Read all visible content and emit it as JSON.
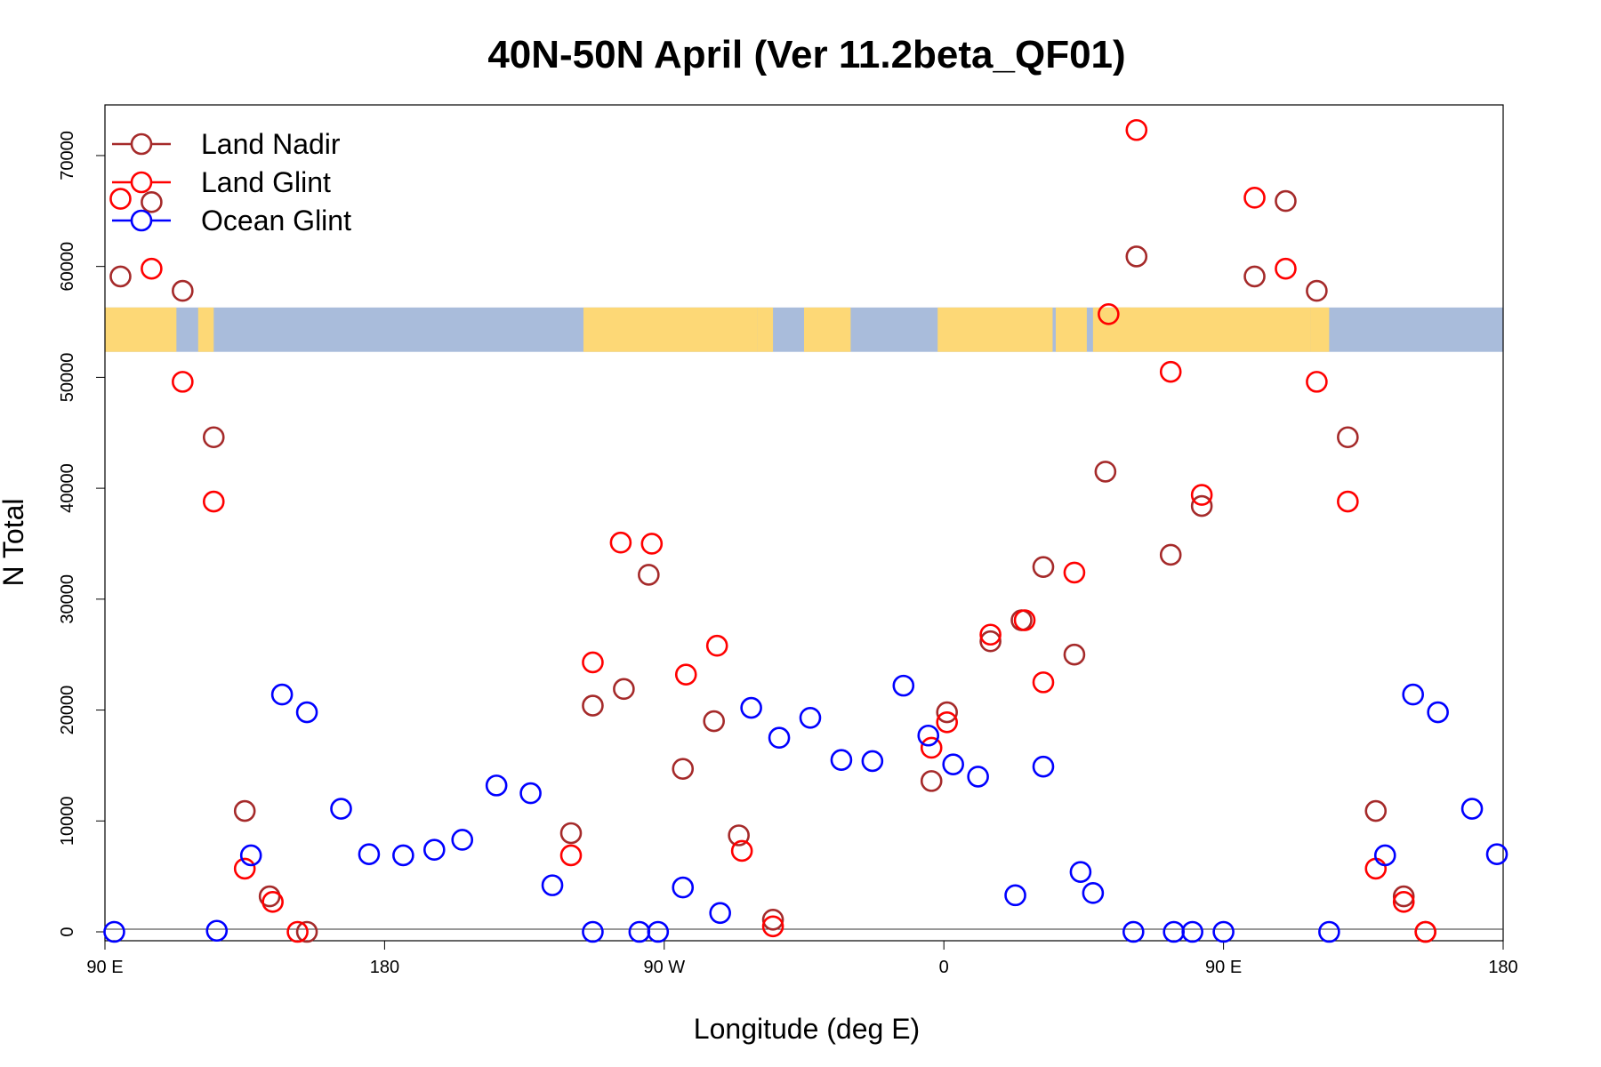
{
  "chart_data": {
    "type": "scatter",
    "title": "40N-50N April (Ver 11.2beta_QF01)",
    "xlabel": "Longitude (deg E)",
    "ylabel": "N Total",
    "xlim": [
      90,
      540
    ],
    "ylim": [
      0,
      72000
    ],
    "x_ticks": [
      {
        "value": 90,
        "label": "90 E"
      },
      {
        "value": 180,
        "label": "180"
      },
      {
        "value": 270,
        "label": "90 W"
      },
      {
        "value": 360,
        "label": "0"
      },
      {
        "value": 450,
        "label": "90 E"
      },
      {
        "value": 540,
        "label": "180"
      }
    ],
    "y_ticks": [
      {
        "value": 0,
        "label": "0"
      },
      {
        "value": 10000,
        "label": "10000"
      },
      {
        "value": 20000,
        "label": "20000"
      },
      {
        "value": 30000,
        "label": "30000"
      },
      {
        "value": 40000,
        "label": "40000"
      },
      {
        "value": 50000,
        "label": "50000"
      },
      {
        "value": 60000,
        "label": "60000"
      },
      {
        "value": 70000,
        "label": "70000"
      }
    ],
    "grid": false,
    "legend": {
      "position": "top-left"
    },
    "map_strip": {
      "lat_range": "40N-50N",
      "y_range": [
        52300,
        56300
      ],
      "land_color": "#FDD876",
      "ocean_color": "#A9BCDB"
    },
    "series": [
      {
        "name": "Land Nadir",
        "color": "#A52A2A",
        "points": [
          {
            "x": 95,
            "y": 59100
          },
          {
            "x": 105,
            "y": 65800
          },
          {
            "x": 115,
            "y": 57800
          },
          {
            "x": 125,
            "y": 44600
          },
          {
            "x": 135,
            "y": 10900
          },
          {
            "x": 143,
            "y": 3200
          },
          {
            "x": 155,
            "y": 0
          },
          {
            "x": 240,
            "y": 8900
          },
          {
            "x": 247,
            "y": 20400
          },
          {
            "x": 257,
            "y": 21900
          },
          {
            "x": 265,
            "y": 32200
          },
          {
            "x": 276,
            "y": 14700
          },
          {
            "x": 286,
            "y": 19000
          },
          {
            "x": 294,
            "y": 8700
          },
          {
            "x": 305,
            "y": 1100
          },
          {
            "x": 356,
            "y": 13600
          },
          {
            "x": 361,
            "y": 19800
          },
          {
            "x": 375,
            "y": 26200
          },
          {
            "x": 385,
            "y": 28100
          },
          {
            "x": 392,
            "y": 32900
          },
          {
            "x": 402,
            "y": 25000
          },
          {
            "x": 412,
            "y": 41500
          },
          {
            "x": 422,
            "y": 60900
          },
          {
            "x": 433,
            "y": 34000
          },
          {
            "x": 443,
            "y": 38400
          },
          {
            "x": 460,
            "y": 59100
          },
          {
            "x": 470,
            "y": 65900
          },
          {
            "x": 480,
            "y": 57800
          },
          {
            "x": 490,
            "y": 44600
          },
          {
            "x": 499,
            "y": 10900
          },
          {
            "x": 508,
            "y": 3200
          },
          {
            "x": 515,
            "y": 0
          }
        ]
      },
      {
        "name": "Land Glint",
        "color": "#FF0000",
        "points": [
          {
            "x": 95,
            "y": 66100
          },
          {
            "x": 105,
            "y": 59800
          },
          {
            "x": 115,
            "y": 49600
          },
          {
            "x": 125,
            "y": 38800
          },
          {
            "x": 135,
            "y": 5700
          },
          {
            "x": 144,
            "y": 2700
          },
          {
            "x": 152,
            "y": 0
          },
          {
            "x": 240,
            "y": 6900
          },
          {
            "x": 247,
            "y": 24300
          },
          {
            "x": 256,
            "y": 35100
          },
          {
            "x": 266,
            "y": 35000
          },
          {
            "x": 277,
            "y": 23200
          },
          {
            "x": 287,
            "y": 25800
          },
          {
            "x": 295,
            "y": 7300
          },
          {
            "x": 305,
            "y": 500
          },
          {
            "x": 356,
            "y": 16600
          },
          {
            "x": 361,
            "y": 18900
          },
          {
            "x": 375,
            "y": 26800
          },
          {
            "x": 386,
            "y": 28100
          },
          {
            "x": 392,
            "y": 22500
          },
          {
            "x": 402,
            "y": 32400
          },
          {
            "x": 413,
            "y": 55700
          },
          {
            "x": 422,
            "y": 72300
          },
          {
            "x": 433,
            "y": 50500
          },
          {
            "x": 443,
            "y": 39400
          },
          {
            "x": 460,
            "y": 66200
          },
          {
            "x": 470,
            "y": 59800
          },
          {
            "x": 480,
            "y": 49600
          },
          {
            "x": 490,
            "y": 38800
          },
          {
            "x": 499,
            "y": 5700
          },
          {
            "x": 508,
            "y": 2700
          },
          {
            "x": 515,
            "y": 0
          }
        ]
      },
      {
        "name": "Ocean Glint",
        "color": "#0000FF",
        "points": [
          {
            "x": 93,
            "y": 0
          },
          {
            "x": 126,
            "y": 100
          },
          {
            "x": 137,
            "y": 6900
          },
          {
            "x": 147,
            "y": 21400
          },
          {
            "x": 155,
            "y": 19800
          },
          {
            "x": 166,
            "y": 11100
          },
          {
            "x": 175,
            "y": 7000
          },
          {
            "x": 186,
            "y": 6900
          },
          {
            "x": 196,
            "y": 7400
          },
          {
            "x": 205,
            "y": 8300
          },
          {
            "x": 216,
            "y": 13200
          },
          {
            "x": 227,
            "y": 12500
          },
          {
            "x": 234,
            "y": 4200
          },
          {
            "x": 247,
            "y": 0
          },
          {
            "x": 262,
            "y": 0
          },
          {
            "x": 268,
            "y": 0
          },
          {
            "x": 276,
            "y": 4000
          },
          {
            "x": 288,
            "y": 1700
          },
          {
            "x": 298,
            "y": 20200
          },
          {
            "x": 307,
            "y": 17500
          },
          {
            "x": 317,
            "y": 19300
          },
          {
            "x": 327,
            "y": 15500
          },
          {
            "x": 337,
            "y": 15400
          },
          {
            "x": 347,
            "y": 22200
          },
          {
            "x": 355,
            "y": 17700
          },
          {
            "x": 363,
            "y": 15100
          },
          {
            "x": 371,
            "y": 14000
          },
          {
            "x": 383,
            "y": 3300
          },
          {
            "x": 392,
            "y": 14900
          },
          {
            "x": 404,
            "y": 5400
          },
          {
            "x": 408,
            "y": 3500
          },
          {
            "x": 421,
            "y": 0
          },
          {
            "x": 434,
            "y": 0
          },
          {
            "x": 440,
            "y": 0
          },
          {
            "x": 450,
            "y": 0
          },
          {
            "x": 484,
            "y": 0
          },
          {
            "x": 502,
            "y": 6900
          },
          {
            "x": 511,
            "y": 21400
          },
          {
            "x": 519,
            "y": 19800
          },
          {
            "x": 530,
            "y": 11100
          },
          {
            "x": 538,
            "y": 7000
          }
        ]
      }
    ]
  }
}
